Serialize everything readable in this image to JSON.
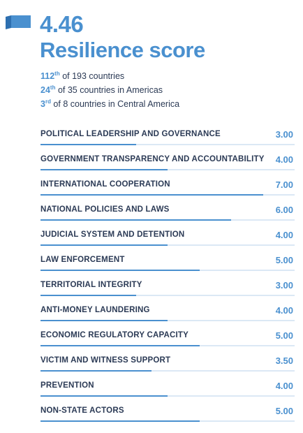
{
  "header": {
    "score": "4.46",
    "title": "Resilience score",
    "logo_icon": "flag-ribbon-icon"
  },
  "ranks": [
    {
      "rank": "112",
      "suffix": "th",
      "text": " of 193 countries"
    },
    {
      "rank": "24",
      "suffix": "th",
      "text": " of 35 countries in Americas"
    },
    {
      "rank": "3",
      "suffix": "rd",
      "text": " of 8 countries in Central America"
    }
  ],
  "colors": {
    "accent": "#4a90cf",
    "text": "#2b3a55",
    "track": "#dbe8f5"
  },
  "chart_data": {
    "type": "bar",
    "title": "",
    "xlim": [
      0,
      8
    ],
    "categories": [
      "POLITICAL LEADERSHIP AND GOVERNANCE",
      "GOVERNMENT TRANSPARENCY AND ACCOUNTABILITY",
      "INTERNATIONAL COOPERATION",
      "NATIONAL POLICIES AND LAWS",
      "JUDICIAL SYSTEM AND DETENTION",
      "LAW ENFORCEMENT",
      "TERRITORIAL INTEGRITY",
      "ANTI-MONEY LAUNDERING",
      "ECONOMIC REGULATORY CAPACITY",
      "VICTIM AND WITNESS SUPPORT",
      "PREVENTION",
      "NON-STATE ACTORS"
    ],
    "values": [
      3.0,
      4.0,
      7.0,
      6.0,
      4.0,
      5.0,
      3.0,
      4.0,
      5.0,
      3.5,
      4.0,
      5.0
    ],
    "value_labels": [
      "3.00",
      "4.00",
      "7.00",
      "6.00",
      "4.00",
      "5.00",
      "3.00",
      "4.00",
      "5.00",
      "3.50",
      "4.00",
      "5.00"
    ]
  }
}
